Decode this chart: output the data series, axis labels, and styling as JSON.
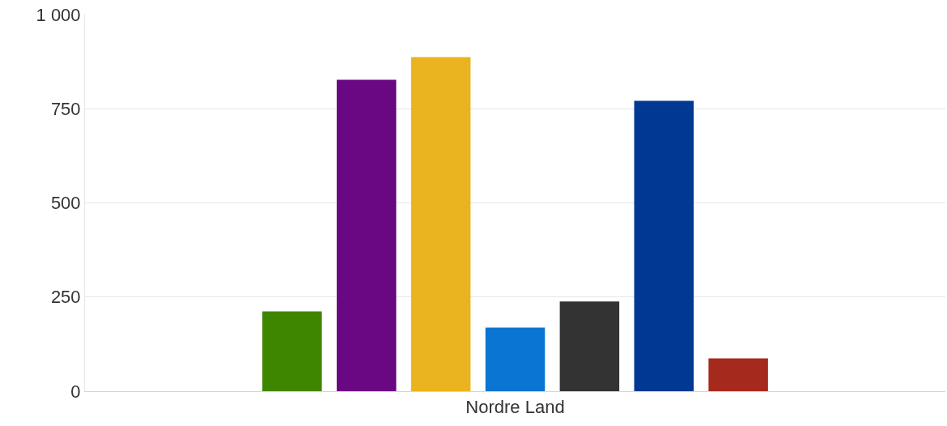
{
  "chart_data": {
    "type": "bar",
    "categories": [
      "Nordre Land"
    ],
    "series": [
      {
        "color": "#3f8600",
        "values": [
          212
        ]
      },
      {
        "color": "#6a0783",
        "values": [
          827
        ]
      },
      {
        "color": "#eab320",
        "values": [
          887
        ]
      },
      {
        "color": "#0a75d2",
        "values": [
          169
        ]
      },
      {
        "color": "#333333",
        "values": [
          238
        ]
      },
      {
        "color": "#013893",
        "values": [
          771
        ]
      },
      {
        "color": "#a52a1d",
        "values": [
          87
        ]
      }
    ],
    "ylim": [
      0,
      1000
    ],
    "yticks": [
      0,
      250,
      500,
      750,
      {
        "value": 1000,
        "label": "1 000"
      }
    ],
    "grid": "y"
  }
}
